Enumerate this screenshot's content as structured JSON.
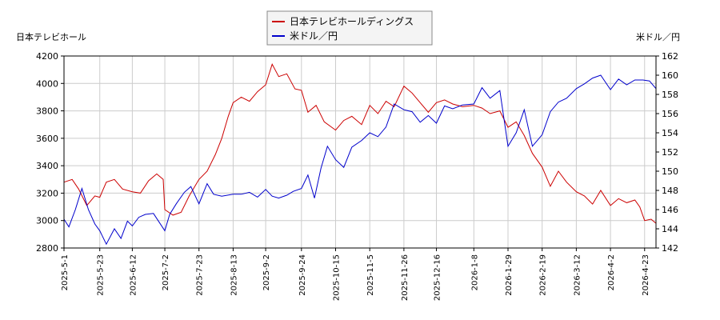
{
  "chart_data": {
    "type": "line",
    "title": "",
    "legend": {
      "placement": "top-center",
      "entries": [
        {
          "name": "日本テレビホールディングス",
          "color": "#cc0000"
        },
        {
          "name": "米ドル／円",
          "color": "#0000cc"
        }
      ]
    },
    "left_axis": {
      "label": "日本テレビホール",
      "min": 2800,
      "max": 4200,
      "ticks": [
        2800,
        3000,
        3200,
        3400,
        3600,
        3800,
        4000,
        4200
      ],
      "color": "#cc0000"
    },
    "right_axis": {
      "label": "米ドル／円",
      "min": 142,
      "max": 162,
      "ticks": [
        142,
        144,
        146,
        148,
        150,
        152,
        154,
        156,
        158,
        160,
        162
      ],
      "color": "#0000cc"
    },
    "x_ticks": [
      "2025-5-1",
      "2025-5-23",
      "2025-6-12",
      "2025-7-2",
      "2025-7-23",
      "2025-8-13",
      "2025-9-2",
      "2025-9-24",
      "2025-10-15",
      "2025-11-5",
      "2025-11-26",
      "2025-12-16",
      "2026-1-8",
      "2026-1-29",
      "2026-2-19",
      "2026-3-12",
      "2026-4-2",
      "2026-4-23"
    ],
    "grid": true,
    "series": [
      {
        "name": "日本テレビホールディングス",
        "axis": "left",
        "color": "#cc0000",
        "points": [
          [
            "2025-5-1",
            3280
          ],
          [
            "2025-5-6",
            3300
          ],
          [
            "2025-5-10",
            3230
          ],
          [
            "2025-5-15",
            3110
          ],
          [
            "2025-5-20",
            3180
          ],
          [
            "2025-5-23",
            3170
          ],
          [
            "2025-5-27",
            3280
          ],
          [
            "2025-6-1",
            3300
          ],
          [
            "2025-6-6",
            3230
          ],
          [
            "2025-6-12",
            3210
          ],
          [
            "2025-6-17",
            3200
          ],
          [
            "2025-6-22",
            3290
          ],
          [
            "2025-6-27",
            3340
          ],
          [
            "2025-7-1",
            3300
          ],
          [
            "2025-7-2",
            3080
          ],
          [
            "2025-7-7",
            3040
          ],
          [
            "2025-7-12",
            3060
          ],
          [
            "2025-7-17",
            3180
          ],
          [
            "2025-7-23",
            3300
          ],
          [
            "2025-7-28",
            3360
          ],
          [
            "2025-8-2",
            3480
          ],
          [
            "2025-8-6",
            3600
          ],
          [
            "2025-8-10",
            3760
          ],
          [
            "2025-8-13",
            3860
          ],
          [
            "2025-8-18",
            3900
          ],
          [
            "2025-8-23",
            3870
          ],
          [
            "2025-8-28",
            3940
          ],
          [
            "2025-9-2",
            3990
          ],
          [
            "2025-9-6",
            4140
          ],
          [
            "2025-9-10",
            4050
          ],
          [
            "2025-9-15",
            4070
          ],
          [
            "2025-9-20",
            3960
          ],
          [
            "2025-9-24",
            3950
          ],
          [
            "2025-9-28",
            3790
          ],
          [
            "2025-10-3",
            3840
          ],
          [
            "2025-10-8",
            3720
          ],
          [
            "2025-10-15",
            3660
          ],
          [
            "2025-10-20",
            3730
          ],
          [
            "2025-10-25",
            3760
          ],
          [
            "2025-10-31",
            3700
          ],
          [
            "2025-11-5",
            3840
          ],
          [
            "2025-11-10",
            3780
          ],
          [
            "2025-11-15",
            3870
          ],
          [
            "2025-11-20",
            3830
          ],
          [
            "2025-11-26",
            3980
          ],
          [
            "2025-12-1",
            3930
          ],
          [
            "2025-12-6",
            3860
          ],
          [
            "2025-12-11",
            3790
          ],
          [
            "2025-12-16",
            3860
          ],
          [
            "2025-12-21",
            3880
          ],
          [
            "2025-12-26",
            3850
          ],
          [
            "2026-1-1",
            3830
          ],
          [
            "2026-1-8",
            3840
          ],
          [
            "2026-1-13",
            3820
          ],
          [
            "2026-1-18",
            3780
          ],
          [
            "2026-1-24",
            3800
          ],
          [
            "2026-1-29",
            3680
          ],
          [
            "2026-2-3",
            3720
          ],
          [
            "2026-2-8",
            3620
          ],
          [
            "2026-2-13",
            3490
          ],
          [
            "2026-2-19",
            3390
          ],
          [
            "2026-2-24",
            3250
          ],
          [
            "2026-3-1",
            3360
          ],
          [
            "2026-3-6",
            3280
          ],
          [
            "2026-3-12",
            3210
          ],
          [
            "2026-3-17",
            3180
          ],
          [
            "2026-3-22",
            3120
          ],
          [
            "2026-3-27",
            3220
          ],
          [
            "2026-4-2",
            3110
          ],
          [
            "2026-4-7",
            3160
          ],
          [
            "2026-4-12",
            3130
          ],
          [
            "2026-4-17",
            3150
          ],
          [
            "2026-4-20",
            3100
          ],
          [
            "2026-4-23",
            3000
          ],
          [
            "2026-4-27",
            3010
          ],
          [
            "2026-4-30",
            2980
          ]
        ]
      },
      {
        "name": "米ドル／円",
        "axis": "right",
        "color": "#0000cc",
        "points": [
          [
            "2025-5-1",
            145.0
          ],
          [
            "2025-5-4",
            144.2
          ],
          [
            "2025-5-8",
            146.0
          ],
          [
            "2025-5-12",
            148.2
          ],
          [
            "2025-5-16",
            146.0
          ],
          [
            "2025-5-20",
            144.5
          ],
          [
            "2025-5-23",
            143.8
          ],
          [
            "2025-5-27",
            142.4
          ],
          [
            "2025-6-1",
            144.0
          ],
          [
            "2025-6-5",
            143.0
          ],
          [
            "2025-6-9",
            144.8
          ],
          [
            "2025-6-12",
            144.3
          ],
          [
            "2025-6-16",
            145.2
          ],
          [
            "2025-6-20",
            145.5
          ],
          [
            "2025-6-25",
            145.6
          ],
          [
            "2025-7-2",
            143.8
          ],
          [
            "2025-7-5",
            145.5
          ],
          [
            "2025-7-9",
            146.6
          ],
          [
            "2025-7-14",
            147.8
          ],
          [
            "2025-7-18",
            148.4
          ],
          [
            "2025-7-23",
            146.6
          ],
          [
            "2025-7-28",
            148.7
          ],
          [
            "2025-8-1",
            147.6
          ],
          [
            "2025-8-6",
            147.4
          ],
          [
            "2025-8-13",
            147.6
          ],
          [
            "2025-8-18",
            147.6
          ],
          [
            "2025-8-23",
            147.8
          ],
          [
            "2025-8-28",
            147.3
          ],
          [
            "2025-9-2",
            148.1
          ],
          [
            "2025-9-6",
            147.4
          ],
          [
            "2025-9-10",
            147.2
          ],
          [
            "2025-9-15",
            147.5
          ],
          [
            "2025-9-19",
            147.9
          ],
          [
            "2025-9-24",
            148.2
          ],
          [
            "2025-9-28",
            149.6
          ],
          [
            "2025-10-2",
            147.2
          ],
          [
            "2025-10-6",
            150.3
          ],
          [
            "2025-10-10",
            152.6
          ],
          [
            "2025-10-15",
            151.2
          ],
          [
            "2025-10-20",
            150.4
          ],
          [
            "2025-10-25",
            152.5
          ],
          [
            "2025-10-31",
            153.2
          ],
          [
            "2025-11-5",
            154.0
          ],
          [
            "2025-11-10",
            153.6
          ],
          [
            "2025-11-15",
            154.6
          ],
          [
            "2025-11-20",
            157.0
          ],
          [
            "2025-11-26",
            156.4
          ],
          [
            "2025-12-1",
            156.2
          ],
          [
            "2025-12-6",
            155.1
          ],
          [
            "2025-12-11",
            155.8
          ],
          [
            "2025-12-16",
            155.0
          ],
          [
            "2025-12-21",
            156.8
          ],
          [
            "2025-12-26",
            156.5
          ],
          [
            "2026-1-1",
            156.9
          ],
          [
            "2026-1-8",
            157.0
          ],
          [
            "2026-1-13",
            158.7
          ],
          [
            "2026-1-18",
            157.6
          ],
          [
            "2026-1-24",
            158.4
          ],
          [
            "2026-1-29",
            152.6
          ],
          [
            "2026-2-3",
            154.0
          ],
          [
            "2026-2-8",
            156.4
          ],
          [
            "2026-2-13",
            152.6
          ],
          [
            "2026-2-19",
            153.8
          ],
          [
            "2026-2-24",
            156.2
          ],
          [
            "2026-3-1",
            157.2
          ],
          [
            "2026-3-6",
            157.6
          ],
          [
            "2026-3-12",
            158.6
          ],
          [
            "2026-3-17",
            159.1
          ],
          [
            "2026-3-22",
            159.7
          ],
          [
            "2026-3-27",
            160.0
          ],
          [
            "2026-4-2",
            158.5
          ],
          [
            "2026-4-7",
            159.6
          ],
          [
            "2026-4-12",
            159.0
          ],
          [
            "2026-4-17",
            159.5
          ],
          [
            "2026-4-22",
            159.5
          ],
          [
            "2026-4-26",
            159.4
          ],
          [
            "2026-4-30",
            158.6
          ]
        ]
      }
    ]
  }
}
